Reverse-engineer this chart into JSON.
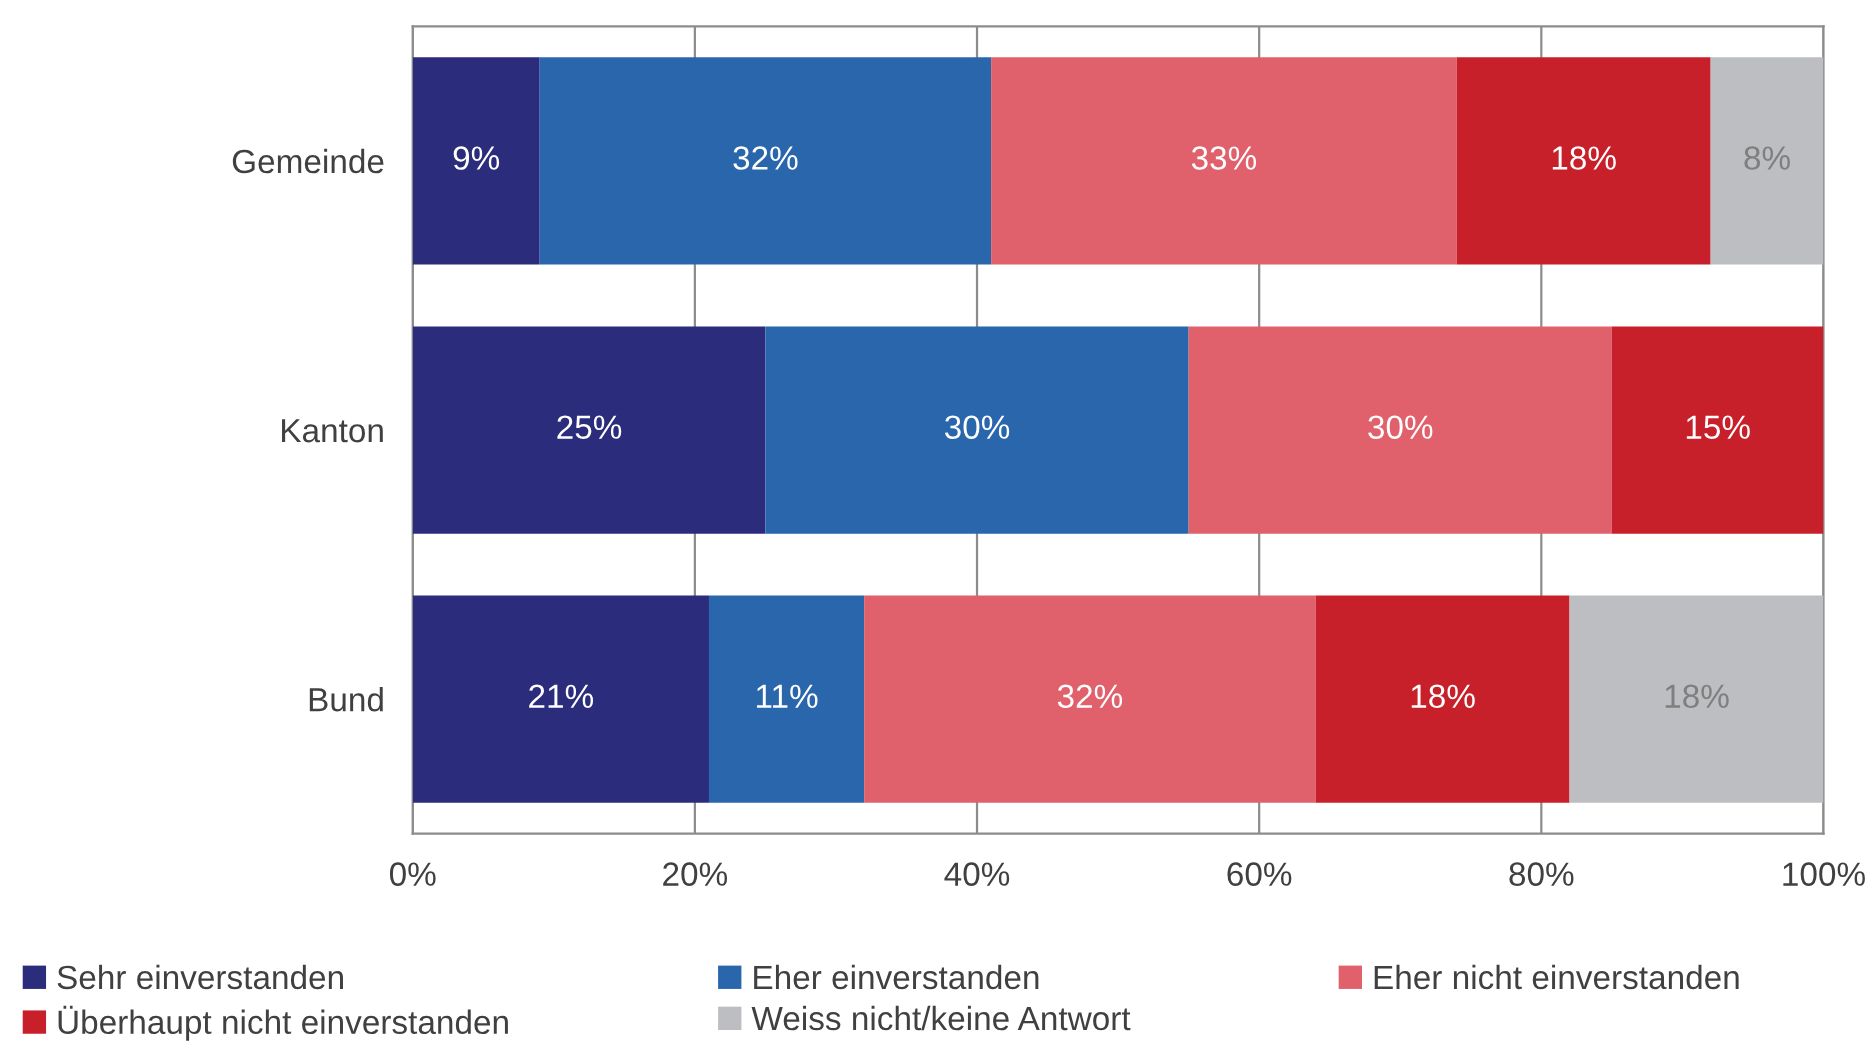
{
  "chart_data": {
    "type": "bar",
    "orientation": "horizontal",
    "stacked": true,
    "categories": [
      "Gemeinde",
      "Kanton",
      "Bund"
    ],
    "series": [
      {
        "name": "Sehr einverstanden",
        "color": "#2b2d7c",
        "values": [
          9,
          25,
          21
        ],
        "value_labels": [
          "9%",
          "25%",
          "21%"
        ]
      },
      {
        "name": "Eher einverstanden",
        "color": "#2a66ac",
        "values": [
          32,
          30,
          11
        ],
        "value_labels": [
          "32%",
          "30%",
          "11%"
        ]
      },
      {
        "name": "Eher nicht einverstanden",
        "color": "#e0606c",
        "values": [
          33,
          30,
          32
        ],
        "value_labels": [
          "33%",
          "30%",
          "32%"
        ]
      },
      {
        "name": "Überhaupt nicht einverstanden",
        "color": "#c8202a",
        "values": [
          18,
          15,
          18
        ],
        "value_labels": [
          "18%",
          "15%",
          "18%"
        ]
      },
      {
        "name": "Weiss nicht/keine Antwort",
        "color": "#bdbec2",
        "values": [
          8,
          null,
          18
        ],
        "value_labels": [
          "8%",
          null,
          "18%"
        ]
      }
    ],
    "xlim": [
      0,
      100
    ],
    "xticks": [
      {
        "value": 0,
        "label": "0%"
      },
      {
        "value": 20,
        "label": "20%"
      },
      {
        "value": 40,
        "label": "40%"
      },
      {
        "value": 60,
        "label": "60%"
      },
      {
        "value": 80,
        "label": "80%"
      },
      {
        "value": 100,
        "label": "100%"
      }
    ],
    "grid": "x",
    "legend": "bottom"
  }
}
